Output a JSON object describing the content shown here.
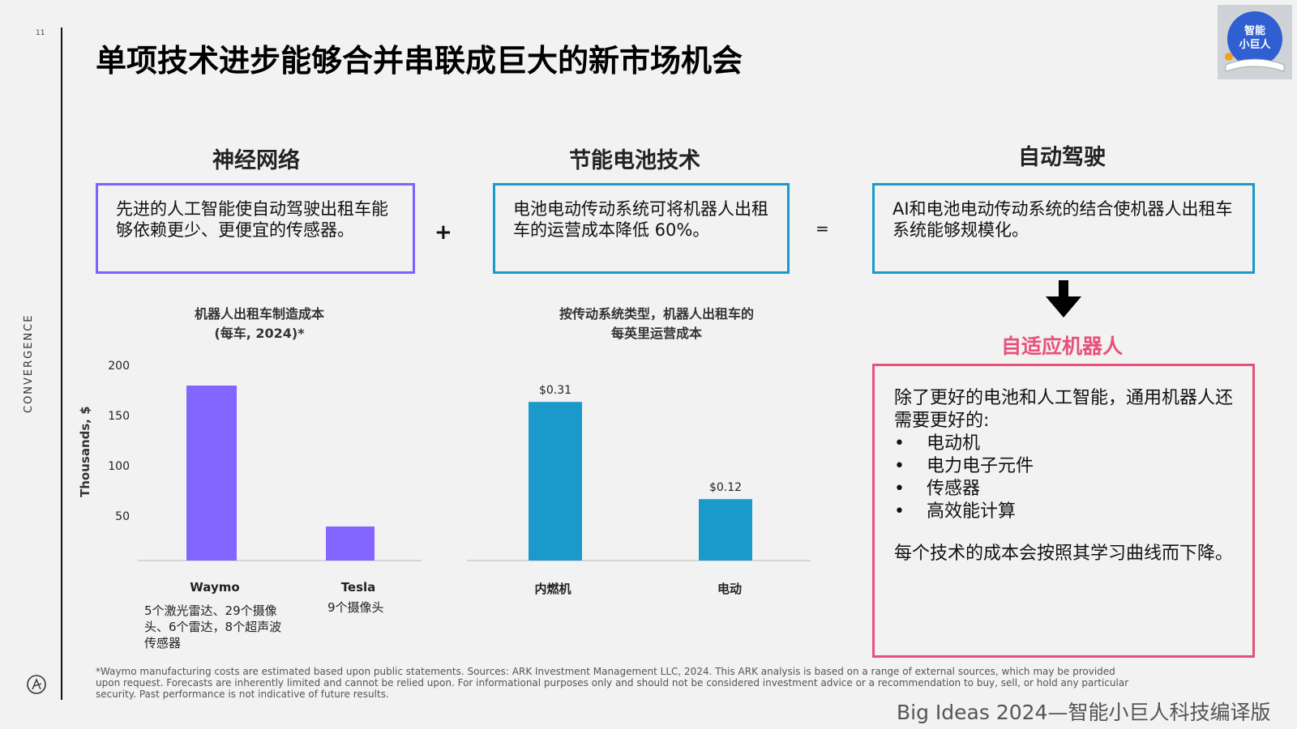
{
  "page_number": "11",
  "side_label": "CONVERGENCE",
  "title": "单项技术进步能够合并串联成巨大的新市场机会",
  "badge": {
    "line1": "智能",
    "line2": "小巨人"
  },
  "sections": [
    {
      "heading": "神经网络",
      "text": "先进的人工智能使自动驾驶出租车能够依赖更少、更便宜的传感器。",
      "color": "#7b61ff"
    },
    {
      "heading": "节能电池技术",
      "text": "电池电动传动系统可将机器人出租车的运营成本降低 60%。",
      "color": "#1a9acb"
    },
    {
      "heading": "自动驾驶",
      "text": "AI和电池电动传动系统的结合使机器人出租车系统能够规模化。",
      "color": "#1a9acb"
    }
  ],
  "operators": {
    "plus": "+",
    "equals": "="
  },
  "robot_section": {
    "title": "自适应机器人",
    "intro": "除了更好的电池和人工智能，通用机器人还需要更好的:",
    "items": [
      "电动机",
      "电力电子元件",
      "传感器",
      "高效能计算"
    ],
    "conclusion": "每个技术的成本会按照其学习曲线而下降。",
    "color": "#e8507a"
  },
  "chart_data": [
    {
      "type": "bar",
      "title_line1": "机器人出租车制造成本",
      "title_line2": "(每车, 2024)*",
      "ylabel": "Thousands, $",
      "ylim": [
        0,
        200
      ],
      "yticks": [
        "200",
        "150",
        "100",
        "50"
      ],
      "categories": [
        "Waymo",
        "Tesla"
      ],
      "values": [
        180,
        35
      ],
      "notes": [
        "5个激光雷达、29个摄像头、6个雷达，8个超声波传感器",
        "9个摄像头"
      ],
      "color": "#8266ff"
    },
    {
      "type": "bar",
      "title_line1": "按传动系统类型，机器人出租车的",
      "title_line2": "每英里运营成本",
      "ylim": [
        0,
        0.38
      ],
      "categories": [
        "内燃机",
        "电动"
      ],
      "values": [
        0.31,
        0.12
      ],
      "data_labels": [
        "$0.31",
        "$0.12"
      ],
      "color": "#1a9acb"
    }
  ],
  "footnote": "*Waymo manufacturing costs are estimated based upon public statements. Sources: ARK Investment Management LLC, 2024. This ARK analysis is based on a range of external sources, which may be provided upon request. Forecasts are inherently limited and cannot be relied upon. For informational purposes only and should not be considered investment advice or a recommendation to buy, sell, or hold any particular security. Past performance is not indicative of future results.",
  "credit": "Big Ideas 2024—智能小巨人科技编译版"
}
